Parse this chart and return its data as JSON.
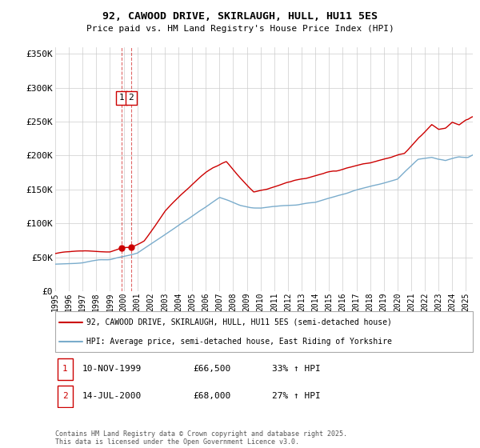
{
  "title": "92, CAWOOD DRIVE, SKIRLAUGH, HULL, HU11 5ES",
  "subtitle": "Price paid vs. HM Land Registry's House Price Index (HPI)",
  "legend_line1": "92, CAWOOD DRIVE, SKIRLAUGH, HULL, HU11 5ES (semi-detached house)",
  "legend_line2": "HPI: Average price, semi-detached house, East Riding of Yorkshire",
  "footnote": "Contains HM Land Registry data © Crown copyright and database right 2025.\nThis data is licensed under the Open Government Licence v3.0.",
  "property_color": "#cc0000",
  "hpi_color": "#7aaccc",
  "transactions": [
    {
      "label": "1",
      "date": "10-NOV-1999",
      "price": 66500,
      "hpi_pct": "33% ↑ HPI",
      "x_year": 1999.86
    },
    {
      "label": "2",
      "date": "14-JUL-2000",
      "price": 68000,
      "hpi_pct": "27% ↑ HPI",
      "x_year": 2000.54
    }
  ],
  "xmin": 1995.0,
  "xmax": 2025.5,
  "ymin": 0,
  "ymax": 360000,
  "yticks": [
    0,
    50000,
    100000,
    150000,
    200000,
    250000,
    300000,
    350000
  ],
  "ytick_labels": [
    "£0",
    "£50K",
    "£100K",
    "£150K",
    "£200K",
    "£250K",
    "£300K",
    "£350K"
  ],
  "xtick_years": [
    1995,
    1996,
    1997,
    1998,
    1999,
    2000,
    2001,
    2002,
    2003,
    2004,
    2005,
    2006,
    2007,
    2008,
    2009,
    2010,
    2011,
    2012,
    2013,
    2014,
    2015,
    2016,
    2017,
    2018,
    2019,
    2020,
    2021,
    2022,
    2023,
    2024,
    2025
  ],
  "hpi_keypoints": [
    [
      1995.0,
      40000
    ],
    [
      1997.0,
      43000
    ],
    [
      1999.0,
      48000
    ],
    [
      2001.0,
      58000
    ],
    [
      2003.0,
      85000
    ],
    [
      2005.0,
      115000
    ],
    [
      2007.0,
      145000
    ],
    [
      2008.5,
      135000
    ],
    [
      2010.0,
      130000
    ],
    [
      2012.0,
      133000
    ],
    [
      2014.0,
      140000
    ],
    [
      2016.0,
      153000
    ],
    [
      2018.0,
      165000
    ],
    [
      2020.0,
      172000
    ],
    [
      2021.5,
      200000
    ],
    [
      2022.5,
      205000
    ],
    [
      2023.5,
      200000
    ],
    [
      2024.5,
      205000
    ],
    [
      2025.4,
      205000
    ]
  ],
  "prop_keypoints": [
    [
      1995.0,
      55000
    ],
    [
      1997.0,
      57000
    ],
    [
      1999.0,
      60000
    ],
    [
      1999.86,
      66500
    ],
    [
      2000.54,
      68000
    ],
    [
      2001.5,
      80000
    ],
    [
      2003.0,
      120000
    ],
    [
      2005.0,
      160000
    ],
    [
      2006.5,
      185000
    ],
    [
      2007.5,
      195000
    ],
    [
      2008.5,
      175000
    ],
    [
      2009.5,
      155000
    ],
    [
      2010.5,
      158000
    ],
    [
      2011.5,
      163000
    ],
    [
      2012.5,
      168000
    ],
    [
      2013.5,
      172000
    ],
    [
      2014.5,
      175000
    ],
    [
      2015.5,
      178000
    ],
    [
      2016.5,
      185000
    ],
    [
      2017.5,
      193000
    ],
    [
      2018.5,
      198000
    ],
    [
      2019.5,
      202000
    ],
    [
      2020.5,
      210000
    ],
    [
      2021.5,
      235000
    ],
    [
      2022.5,
      255000
    ],
    [
      2023.0,
      248000
    ],
    [
      2023.5,
      250000
    ],
    [
      2024.0,
      258000
    ],
    [
      2024.5,
      252000
    ],
    [
      2025.0,
      258000
    ],
    [
      2025.4,
      260000
    ]
  ]
}
